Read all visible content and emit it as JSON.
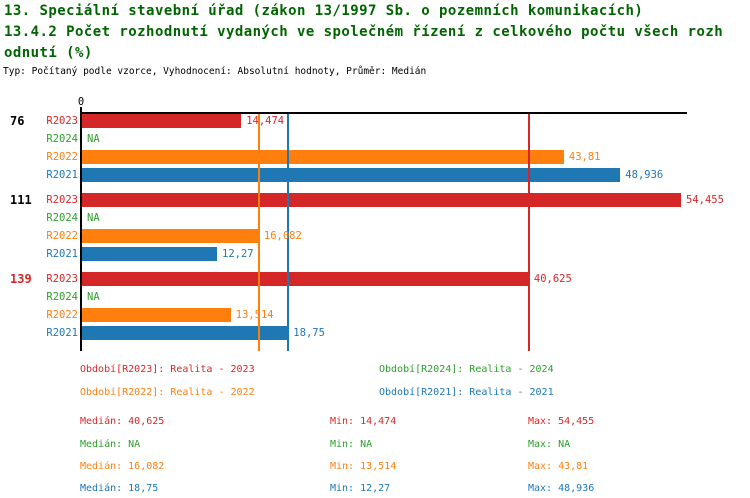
{
  "title": {
    "line1": "13. Speciální stavební úřad (zákon 13/1997 Sb. o pozemních komunikacích)",
    "line2": "13.4.2 Počet rozhodnutí vydaných ve společném řízení z celkového počtu všech rozh",
    "line3": "odnutí (%)",
    "meta": "Typ: Počítaný podle vzorce, Vyhodnocení: Absolutní hodnoty, Průměr: Medián"
  },
  "colors": {
    "title_green": "#006400",
    "r2023_red": "#d62728",
    "r2024_green": "#2ca02c",
    "r2022_orange": "#ff7f0e",
    "r2021_blue": "#1f77b4",
    "axis_black": "#000000",
    "background": "#ffffff"
  },
  "chart_data": {
    "type": "bar",
    "orientation": "horizontal",
    "xlim": [
      0,
      55
    ],
    "origin_label": "0",
    "grid": false,
    "value_format": "decimal-comma",
    "series_colors": {
      "R2023": "#d62728",
      "R2024": "#2ca02c",
      "R2022": "#ff7f0e",
      "R2021": "#1f77b4"
    },
    "groups": [
      {
        "label": "76",
        "label_color": "#000000",
        "bars": [
          {
            "series": "R2023",
            "value": 14.474,
            "value_label": "14,474"
          },
          {
            "series": "R2024",
            "value": null,
            "value_label": "NA"
          },
          {
            "series": "R2022",
            "value": 43.81,
            "value_label": "43,81"
          },
          {
            "series": "R2021",
            "value": 48.936,
            "value_label": "48,936"
          }
        ]
      },
      {
        "label": "111",
        "label_color": "#000000",
        "bars": [
          {
            "series": "R2023",
            "value": 54.455,
            "value_label": "54,455"
          },
          {
            "series": "R2024",
            "value": null,
            "value_label": "NA"
          },
          {
            "series": "R2022",
            "value": 16.082,
            "value_label": "16,082"
          },
          {
            "series": "R2021",
            "value": 12.27,
            "value_label": "12,27"
          }
        ]
      },
      {
        "label": "139",
        "label_color": "#d62728",
        "bars": [
          {
            "series": "R2023",
            "value": 40.625,
            "value_label": "40,625"
          },
          {
            "series": "R2024",
            "value": null,
            "value_label": "NA"
          },
          {
            "series": "R2022",
            "value": 13.514,
            "value_label": "13,514"
          },
          {
            "series": "R2021",
            "value": 18.75,
            "value_label": "18,75"
          }
        ]
      }
    ],
    "median_lines": [
      {
        "series": "R2023",
        "value": 40.625,
        "color": "#d62728"
      },
      {
        "series": "R2022",
        "value": 16.082,
        "color": "#ff7f0e"
      },
      {
        "series": "R2021",
        "value": 18.75,
        "color": "#1f77b4"
      }
    ]
  },
  "legend": {
    "items": [
      {
        "label": "Období[R2023]: Realita - 2023",
        "color": "#d62728"
      },
      {
        "label": "Období[R2024]: Realita - 2024",
        "color": "#2ca02c"
      },
      {
        "label": "Období[R2022]: Realita - 2022",
        "color": "#ff7f0e"
      },
      {
        "label": "Období[R2021]: Realita - 2021",
        "color": "#1f77b4"
      }
    ]
  },
  "stats": {
    "rows": [
      {
        "median": "Medián: 40,625",
        "min": "Min: 14,474",
        "max": "Max: 54,455",
        "color": "#d62728"
      },
      {
        "median": "Medián: NA",
        "min": "Min: NA",
        "max": "Max: NA",
        "color": "#2ca02c"
      },
      {
        "median": "Medián: 16,082",
        "min": "Min: 13,514",
        "max": "Max: 43,81",
        "color": "#ff7f0e"
      },
      {
        "median": "Medián: 18,75",
        "min": "Min: 12,27",
        "max": "Max: 48,936",
        "color": "#1f77b4"
      }
    ]
  }
}
